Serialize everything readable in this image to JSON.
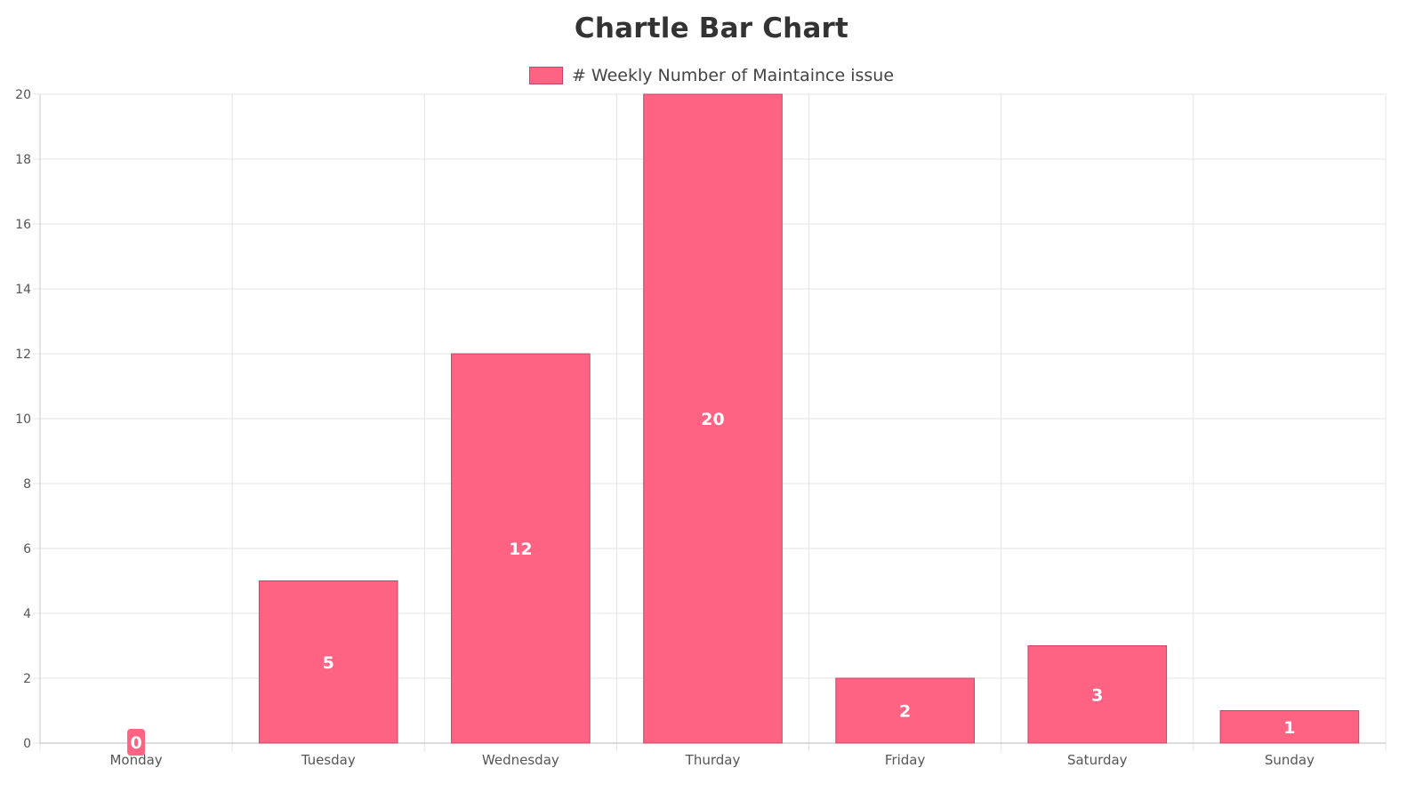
{
  "chart_data": {
    "type": "bar",
    "title": "Chartle Bar Chart",
    "categories": [
      "Monday",
      "Tuesday",
      "Wednesday",
      "Thurday",
      "Friday",
      "Saturday",
      "Sunday"
    ],
    "series": [
      {
        "name": "# Weekly Number of Maintaince issue",
        "values": [
          0,
          5,
          12,
          20,
          2,
          3,
          1
        ],
        "color": "#ff6384",
        "border_color": "#c44468"
      }
    ],
    "ylim": [
      0,
      20
    ],
    "yticks": [
      0,
      2,
      4,
      6,
      8,
      10,
      12,
      14,
      16,
      18,
      20
    ],
    "data_labels": true,
    "grid": true,
    "legend_position": "top"
  }
}
